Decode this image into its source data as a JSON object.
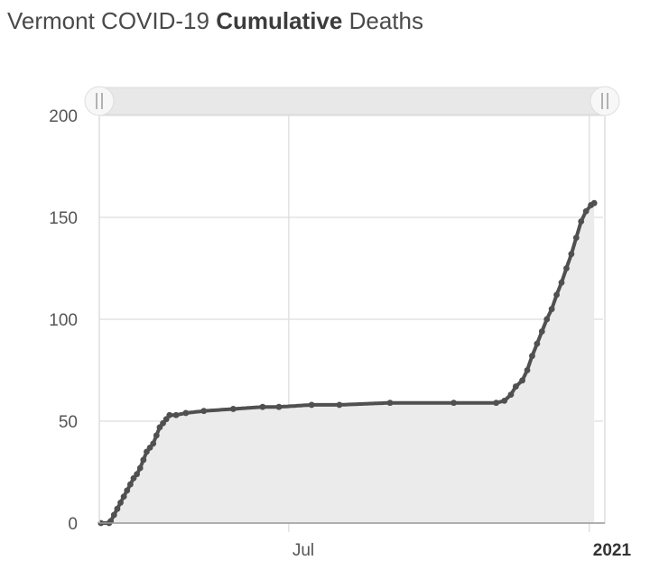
{
  "title": {
    "part1": "Vermont COVID-19 ",
    "bold": "Cumulative",
    "part2": " Deaths"
  },
  "colors": {
    "series": "#505050",
    "area": "#ebebeb",
    "grid": "#dddddd",
    "axis": "#999999",
    "navigator": "#e8e8e8"
  },
  "navigator": {
    "left_handle_icon": "grip-icon",
    "right_handle_icon": "grip-icon"
  },
  "chart_data": {
    "type": "area",
    "title": "Vermont COVID-19 Cumulative Deaths",
    "xlabel": "",
    "ylabel": "",
    "x_type": "date",
    "xlim": [
      "2020-03-07",
      "2021-01-05"
    ],
    "ylim": [
      0,
      200
    ],
    "grid": true,
    "y_ticks": [
      0,
      50,
      100,
      150,
      200
    ],
    "x_ticks": [
      {
        "date": "2020-07-01",
        "label": "Jul",
        "strong": false
      },
      {
        "date": "2021-01-01",
        "label": "2021",
        "strong": true
      }
    ],
    "series": [
      {
        "points": [
          [
            "2020-03-08",
            0
          ],
          [
            "2020-03-13",
            0
          ],
          [
            "2020-03-14",
            1
          ],
          [
            "2020-03-16",
            4
          ],
          [
            "2020-03-18",
            7
          ],
          [
            "2020-03-20",
            10
          ],
          [
            "2020-03-22",
            13
          ],
          [
            "2020-03-24",
            16
          ],
          [
            "2020-03-26",
            19
          ],
          [
            "2020-03-28",
            22
          ],
          [
            "2020-03-30",
            24
          ],
          [
            "2020-04-01",
            27
          ],
          [
            "2020-04-03",
            31
          ],
          [
            "2020-04-05",
            35
          ],
          [
            "2020-04-07",
            37
          ],
          [
            "2020-04-09",
            39
          ],
          [
            "2020-04-11",
            43
          ],
          [
            "2020-04-13",
            47
          ],
          [
            "2020-04-15",
            49
          ],
          [
            "2020-04-17",
            51
          ],
          [
            "2020-04-19",
            53
          ],
          [
            "2020-04-23",
            53
          ],
          [
            "2020-04-29",
            54
          ],
          [
            "2020-05-10",
            55
          ],
          [
            "2020-05-28",
            56
          ],
          [
            "2020-06-15",
            57
          ],
          [
            "2020-06-25",
            57
          ],
          [
            "2020-07-15",
            58
          ],
          [
            "2020-08-01",
            58
          ],
          [
            "2020-09-01",
            59
          ],
          [
            "2020-10-10",
            59
          ],
          [
            "2020-11-05",
            59
          ],
          [
            "2020-11-10",
            60
          ],
          [
            "2020-11-14",
            63
          ],
          [
            "2020-11-17",
            67
          ],
          [
            "2020-11-21",
            70
          ],
          [
            "2020-11-24",
            75
          ],
          [
            "2020-11-27",
            82
          ],
          [
            "2020-11-30",
            88
          ],
          [
            "2020-12-03",
            94
          ],
          [
            "2020-12-06",
            100
          ],
          [
            "2020-12-09",
            105
          ],
          [
            "2020-12-12",
            112
          ],
          [
            "2020-12-15",
            118
          ],
          [
            "2020-12-18",
            125
          ],
          [
            "2020-12-21",
            132
          ],
          [
            "2020-12-24",
            140
          ],
          [
            "2020-12-27",
            148
          ],
          [
            "2020-12-30",
            153
          ],
          [
            "2021-01-02",
            156
          ],
          [
            "2021-01-04",
            157
          ]
        ]
      }
    ]
  }
}
